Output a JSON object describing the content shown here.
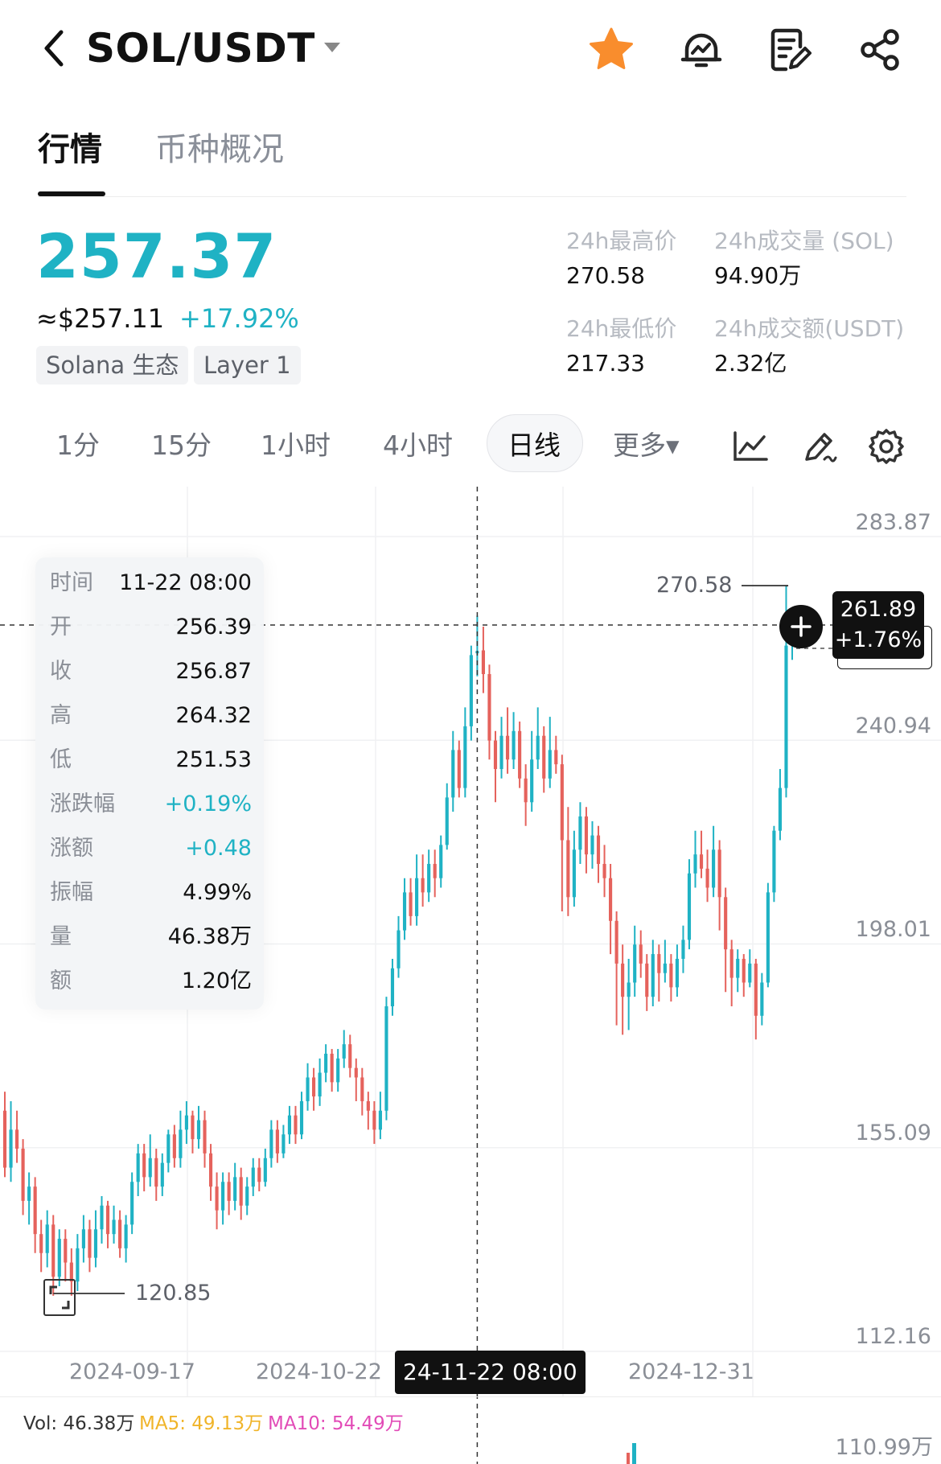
{
  "header": {
    "back_icon": "chevron-left-icon",
    "pair": "SOL/USDT",
    "caret_icon": "caret-down-icon",
    "favorite_icon": "star-icon",
    "favorite_color": "#f98d2d",
    "alert_icon": "price-alert-icon",
    "notes_icon": "notes-icon",
    "share_icon": "share-icon"
  },
  "tabs": [
    {
      "label": "行情",
      "active": true
    },
    {
      "label": "币种概况",
      "active": false
    }
  ],
  "price": {
    "last": "257.37",
    "usd": "≈$257.11",
    "change": "+17.92%",
    "color_up": "#1fb2c4",
    "color_down": "#e5625c"
  },
  "tags": [
    "Solana 生态",
    "Layer 1"
  ],
  "stats": {
    "high_label": "24h最高价",
    "high_value": "270.58",
    "vol_label": "24h成交量 (SOL)",
    "vol_value": "94.90万",
    "low_label": "24h最低价",
    "low_value": "217.33",
    "amount_label": "24h成交额(USDT)",
    "amount_value": "2.32亿"
  },
  "intervals": [
    {
      "label": "1分",
      "active": false
    },
    {
      "label": "15分",
      "active": false
    },
    {
      "label": "1小时",
      "active": false
    },
    {
      "label": "4小时",
      "active": false
    },
    {
      "label": "日线",
      "active": true
    },
    {
      "label": "更多▾",
      "active": false
    }
  ],
  "tools": [
    "line-chart-icon",
    "draw-pen-icon",
    "settings-gear-icon"
  ],
  "chart": {
    "y_ticks": [
      "283.87",
      "240.94",
      "198.01",
      "155.09",
      "112.16"
    ],
    "x_ticks": [
      "2024-09-17",
      "2024-10-22",
      "2024-12-31"
    ],
    "crosshair_time": "24-11-22 08:00",
    "current_price": "261.89",
    "current_change": "+1.76%",
    "high_marker": "270.58",
    "low_marker": "120.85",
    "expand_icon": "expand-icon",
    "add_icon": "plus-icon"
  },
  "tooltip": [
    {
      "k": "时间",
      "v": "11-22 08:00",
      "up": false
    },
    {
      "k": "开",
      "v": "256.39",
      "up": false
    },
    {
      "k": "收",
      "v": "256.87",
      "up": false
    },
    {
      "k": "高",
      "v": "264.32",
      "up": false
    },
    {
      "k": "低",
      "v": "251.53",
      "up": false
    },
    {
      "k": "涨跌幅",
      "v": "+0.19%",
      "up": true
    },
    {
      "k": "涨额",
      "v": "+0.48",
      "up": true
    },
    {
      "k": "振幅",
      "v": "4.99%",
      "up": false
    },
    {
      "k": "量",
      "v": "46.38万",
      "up": false
    },
    {
      "k": "额",
      "v": "1.20亿",
      "up": false
    }
  ],
  "volume": {
    "vol": "Vol: 46.38万",
    "ma5": "MA5: 49.13万",
    "ma10": "MA10: 54.49万",
    "max": "110.99万",
    "ma5_color": "#f0b429",
    "ma10_color": "#e24bb7"
  },
  "chart_data": {
    "type": "candlestick",
    "interval": "日线",
    "ylim": [
      112.16,
      283.87
    ],
    "y_ticks": [
      283.87,
      240.94,
      198.01,
      155.09,
      112.16
    ],
    "x_ticks": [
      "2024-09-17",
      "2024-10-22",
      "2024-12-31"
    ],
    "high": 270.58,
    "low": 120.85,
    "last": 261.89,
    "selected": {
      "time": "11-22 08:00",
      "open": 256.39,
      "close": 256.87,
      "high": 264.32,
      "low": 251.53
    },
    "candles": [
      [
        160.0,
        148.0,
        164.0,
        146.0
      ],
      [
        148.0,
        156.0,
        162.0,
        145.0
      ],
      [
        156.0,
        152.0,
        160.0,
        149.0
      ],
      [
        152.0,
        141.0,
        154.0,
        138.0
      ],
      [
        141.0,
        144.0,
        147.0,
        136.0
      ],
      [
        144.0,
        134.0,
        146.0,
        130.0
      ],
      [
        134.0,
        130.0,
        137.0,
        126.0
      ],
      [
        130.0,
        136.0,
        139.0,
        127.0
      ],
      [
        136.0,
        125.0,
        138.0,
        121.0
      ],
      [
        125.0,
        133.0,
        135.0,
        123.0
      ],
      [
        133.0,
        128.0,
        135.0,
        124.0
      ],
      [
        128.0,
        124.0,
        131.0,
        121.0
      ],
      [
        124.0,
        131.0,
        134.0,
        122.0
      ],
      [
        131.0,
        135.0,
        138.0,
        128.0
      ],
      [
        135.0,
        129.0,
        137.0,
        126.0
      ],
      [
        129.0,
        135.0,
        139.0,
        127.0
      ],
      [
        135.0,
        140.0,
        142.0,
        132.0
      ],
      [
        140.0,
        134.0,
        141.0,
        131.0
      ],
      [
        134.0,
        137.0,
        140.0,
        132.0
      ],
      [
        137.0,
        131.0,
        139.0,
        129.0
      ],
      [
        131.0,
        136.0,
        138.0,
        128.0
      ],
      [
        136.0,
        145.0,
        147.0,
        134.0
      ],
      [
        145.0,
        151.0,
        153.0,
        142.0
      ],
      [
        151.0,
        146.0,
        153.0,
        143.0
      ],
      [
        146.0,
        150.0,
        155.0,
        144.0
      ],
      [
        150.0,
        144.0,
        152.0,
        141.0
      ],
      [
        144.0,
        149.0,
        151.0,
        142.0
      ],
      [
        149.0,
        155.0,
        156.0,
        147.0
      ],
      [
        155.0,
        150.0,
        157.0,
        148.0
      ],
      [
        150.0,
        156.0,
        160.0,
        148.0
      ],
      [
        156.0,
        159.0,
        162.0,
        153.0
      ],
      [
        159.0,
        154.0,
        160.0,
        151.0
      ],
      [
        154.0,
        158.0,
        161.0,
        152.0
      ],
      [
        158.0,
        151.0,
        160.0,
        148.0
      ],
      [
        151.0,
        144.0,
        153.0,
        141.0
      ],
      [
        144.0,
        139.0,
        147.0,
        135.0
      ],
      [
        139.0,
        145.0,
        147.0,
        136.0
      ],
      [
        145.0,
        141.0,
        147.0,
        138.0
      ],
      [
        141.0,
        146.0,
        149.0,
        139.0
      ],
      [
        146.0,
        140.0,
        148.0,
        137.0
      ],
      [
        140.0,
        144.0,
        146.0,
        138.0
      ],
      [
        144.0,
        148.0,
        150.0,
        142.0
      ],
      [
        148.0,
        145.0,
        150.0,
        143.0
      ],
      [
        145.0,
        150.0,
        152.0,
        144.0
      ],
      [
        150.0,
        156.0,
        158.0,
        148.0
      ],
      [
        156.0,
        151.0,
        158.0,
        149.0
      ],
      [
        151.0,
        155.0,
        157.0,
        150.0
      ],
      [
        155.0,
        159.0,
        161.0,
        153.0
      ],
      [
        159.0,
        155.0,
        161.0,
        153.0
      ],
      [
        155.0,
        162.0,
        164.0,
        154.0
      ],
      [
        162.0,
        167.0,
        170.0,
        160.0
      ],
      [
        167.0,
        163.0,
        169.0,
        160.0
      ],
      [
        163.0,
        168.0,
        171.0,
        161.0
      ],
      [
        168.0,
        172.0,
        174.0,
        166.0
      ],
      [
        172.0,
        166.0,
        173.0,
        164.0
      ],
      [
        166.0,
        171.0,
        173.0,
        164.0
      ],
      [
        171.0,
        174.0,
        177.0,
        169.0
      ],
      [
        174.0,
        169.0,
        176.0,
        167.0
      ],
      [
        169.0,
        167.0,
        171.0,
        162.0
      ],
      [
        167.0,
        162.0,
        169.0,
        159.0
      ],
      [
        162.0,
        160.0,
        164.0,
        156.0
      ],
      [
        160.0,
        156.0,
        162.0,
        153.0
      ],
      [
        156.0,
        160.0,
        164.0,
        154.0
      ],
      [
        160.0,
        182.0,
        184.0,
        158.0
      ],
      [
        182.0,
        190.0,
        192.0,
        180.0
      ],
      [
        190.0,
        198.0,
        201.0,
        188.0
      ],
      [
        198.0,
        206.0,
        209.0,
        196.0
      ],
      [
        206.0,
        201.0,
        209.0,
        199.0
      ],
      [
        201.0,
        209.0,
        214.0,
        199.0
      ],
      [
        209.0,
        206.0,
        214.0,
        203.0
      ],
      [
        206.0,
        212.0,
        215.0,
        204.0
      ],
      [
        212.0,
        209.0,
        215.0,
        205.0
      ],
      [
        209.0,
        216.0,
        218.0,
        207.0
      ],
      [
        216.0,
        226.0,
        229.0,
        215.0
      ],
      [
        226.0,
        236.0,
        240.0,
        223.0
      ],
      [
        236.0,
        228.0,
        238.0,
        226.0
      ],
      [
        228.0,
        241.0,
        245.0,
        226.0
      ],
      [
        241.0,
        256.0,
        258.0,
        238.0
      ],
      [
        256.39,
        256.87,
        264.32,
        251.53
      ],
      [
        257.0,
        252.0,
        262.0,
        248.0
      ],
      [
        252.0,
        238.0,
        254.0,
        234.0
      ],
      [
        238.0,
        232.0,
        240.0,
        225.0
      ],
      [
        232.0,
        239.0,
        243.0,
        230.0
      ],
      [
        239.0,
        234.0,
        245.0,
        231.0
      ],
      [
        234.0,
        240.0,
        244.0,
        232.0
      ],
      [
        240.0,
        230.0,
        242.0,
        228.0
      ],
      [
        230.0,
        225.0,
        233.0,
        220.0
      ],
      [
        225.0,
        234.0,
        240.0,
        223.0
      ],
      [
        234.0,
        239.0,
        245.0,
        232.0
      ],
      [
        239.0,
        230.0,
        241.0,
        227.0
      ],
      [
        230.0,
        236.0,
        243.0,
        228.0
      ],
      [
        236.0,
        233.0,
        239.0,
        231.0
      ],
      [
        233.0,
        217.0,
        235.0,
        202.0
      ],
      [
        217.0,
        205.0,
        224.0,
        201.0
      ],
      [
        205.0,
        215.0,
        219.0,
        203.0
      ],
      [
        215.0,
        222.0,
        225.0,
        212.0
      ],
      [
        222.0,
        214.0,
        224.0,
        210.0
      ],
      [
        214.0,
        218.0,
        221.0,
        211.0
      ],
      [
        218.0,
        212.0,
        220.0,
        208.0
      ],
      [
        212.0,
        209.0,
        216.0,
        205.0
      ],
      [
        209.0,
        200.0,
        212.0,
        193.0
      ],
      [
        200.0,
        191.0,
        202.0,
        178.0
      ],
      [
        191.0,
        184.0,
        195.0,
        176.0
      ],
      [
        184.0,
        187.0,
        192.0,
        177.0
      ],
      [
        187.0,
        195.0,
        199.0,
        184.0
      ],
      [
        195.0,
        191.0,
        198.0,
        188.0
      ],
      [
        191.0,
        184.0,
        193.0,
        181.0
      ],
      [
        184.0,
        193.0,
        196.0,
        182.0
      ],
      [
        193.0,
        189.0,
        195.0,
        183.0
      ],
      [
        189.0,
        191.0,
        196.0,
        187.0
      ],
      [
        191.0,
        186.0,
        193.0,
        183.0
      ],
      [
        186.0,
        192.0,
        195.0,
        184.0
      ],
      [
        192.0,
        196.0,
        199.0,
        189.0
      ],
      [
        196.0,
        210.0,
        213.0,
        194.0
      ],
      [
        210.0,
        214.0,
        219.0,
        207.0
      ],
      [
        214.0,
        211.0,
        219.0,
        209.0
      ],
      [
        211.0,
        207.0,
        215.0,
        204.0
      ],
      [
        207.0,
        215.0,
        220.0,
        205.0
      ],
      [
        215.0,
        205.0,
        217.0,
        198.0
      ],
      [
        205.0,
        194.0,
        207.0,
        185.0
      ],
      [
        194.0,
        188.0,
        196.0,
        182.0
      ],
      [
        188.0,
        192.0,
        194.0,
        185.0
      ],
      [
        192.0,
        187.0,
        193.0,
        184.0
      ],
      [
        187.0,
        191.0,
        194.0,
        186.0
      ],
      [
        191.0,
        180.0,
        192.0,
        175.0
      ],
      [
        180.0,
        187.0,
        189.0,
        178.0
      ],
      [
        187.0,
        206.0,
        208.0,
        186.0
      ],
      [
        206.0,
        219.0,
        220.0,
        204.0
      ],
      [
        219.0,
        228.0,
        232.0,
        217.0
      ],
      [
        228.0,
        258.0,
        270.58,
        226.0
      ],
      [
        258.0,
        261.89,
        263.0,
        255.0
      ]
    ]
  }
}
